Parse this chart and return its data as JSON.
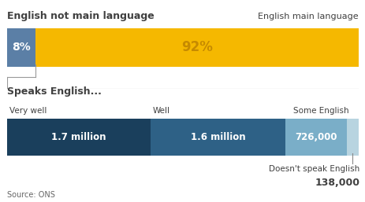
{
  "title1": "English not main language",
  "title2": "English main language",
  "bar1_label1": "8%",
  "bar1_label2": "92%",
  "bar1_pct1": 8,
  "bar1_pct2": 92,
  "bar1_color1": "#5b7fa6",
  "bar1_color2": "#f5b800",
  "bar2_title": "Speaks English...",
  "bar2_labels_top": [
    "Very well",
    "Well",
    "Some English"
  ],
  "bar2_labels_val": [
    "1.7 million",
    "1.6 million",
    "726,000"
  ],
  "bar2_values": [
    1700000,
    1600000,
    726000,
    138000
  ],
  "bar2_colors": [
    "#1a3f5c",
    "#2e6186",
    "#7aaec8",
    "#b8d4e0"
  ],
  "bar2_extra_label": "Doesn't speak English",
  "bar2_extra_val": "138,000",
  "source": "Source: ONS",
  "bg_color": "#ffffff",
  "text_color_dark": "#404040",
  "text_color_white": "#ffffff",
  "text_color_gold": "#c68a00"
}
